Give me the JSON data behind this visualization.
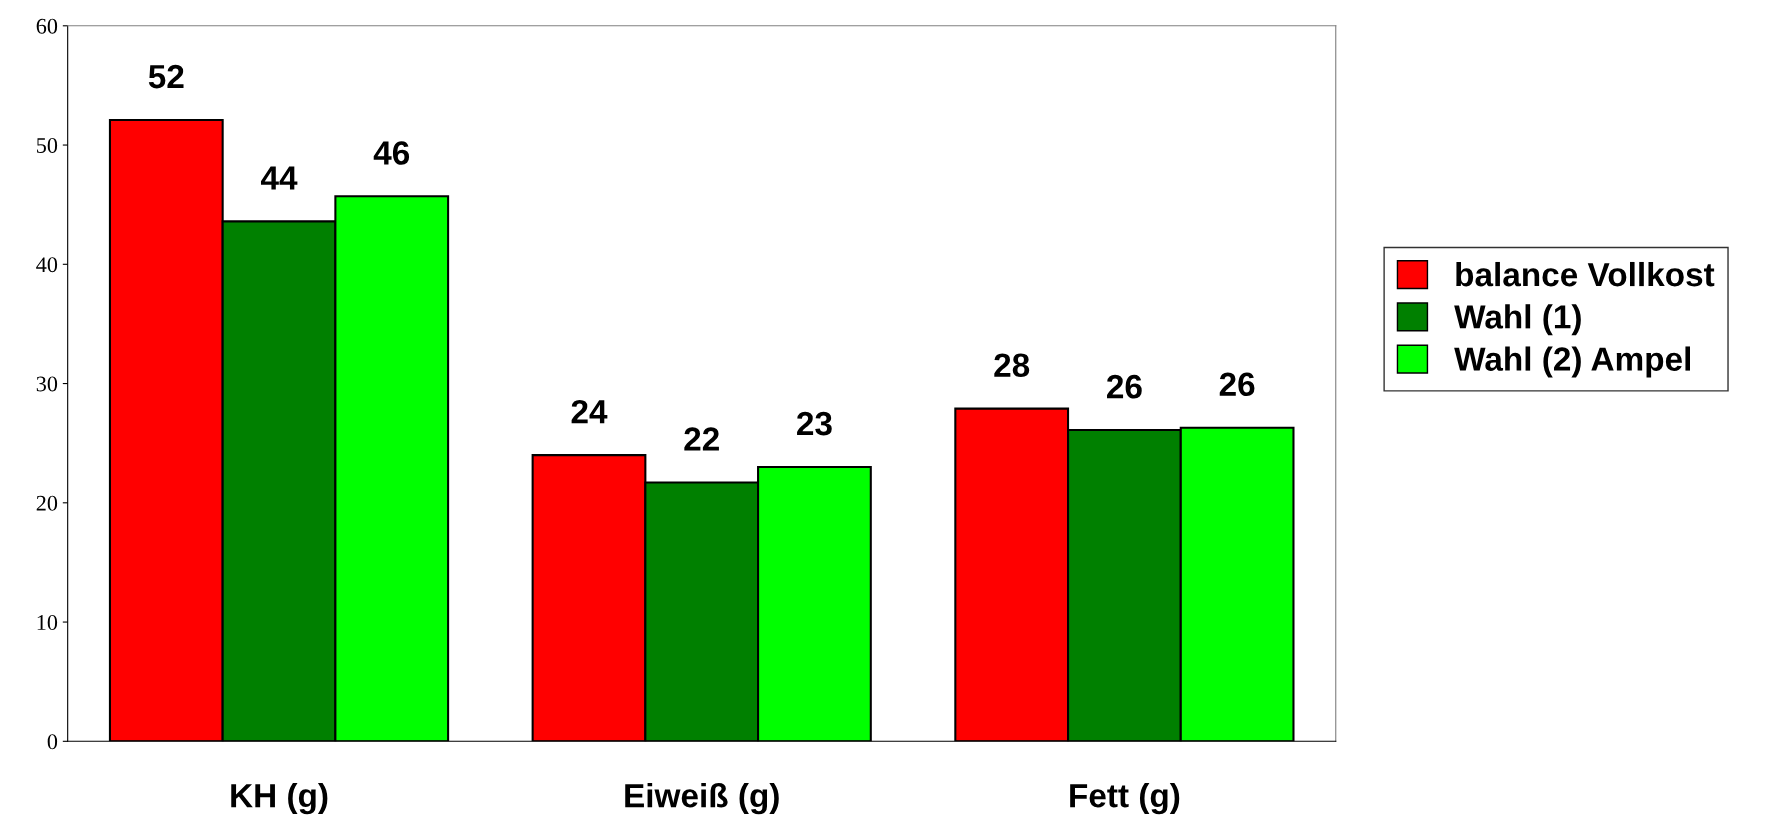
{
  "chart_data": {
    "type": "bar",
    "categories": [
      "KH (g)",
      "Eiweiß (g)",
      "Fett (g)"
    ],
    "series": [
      {
        "name": "balance Vollkost",
        "color": "#ff0000",
        "values": [
          52.1,
          24,
          27.9
        ],
        "value_labels": [
          "52",
          "24",
          "28"
        ]
      },
      {
        "name": "Wahl (1)",
        "color": "#008000",
        "values": [
          43.6,
          21.7,
          26.1
        ],
        "value_labels": [
          "44",
          "22",
          "26"
        ]
      },
      {
        "name": "Wahl (2) Ampel",
        "color": "#00ff00",
        "values": [
          45.7,
          23,
          26.3
        ],
        "value_labels": [
          "46",
          "23",
          "26"
        ]
      }
    ],
    "ylim": [
      0,
      60
    ],
    "yticks": [
      0,
      10,
      20,
      30,
      40,
      50,
      60
    ],
    "grid": false,
    "legend": "right"
  }
}
